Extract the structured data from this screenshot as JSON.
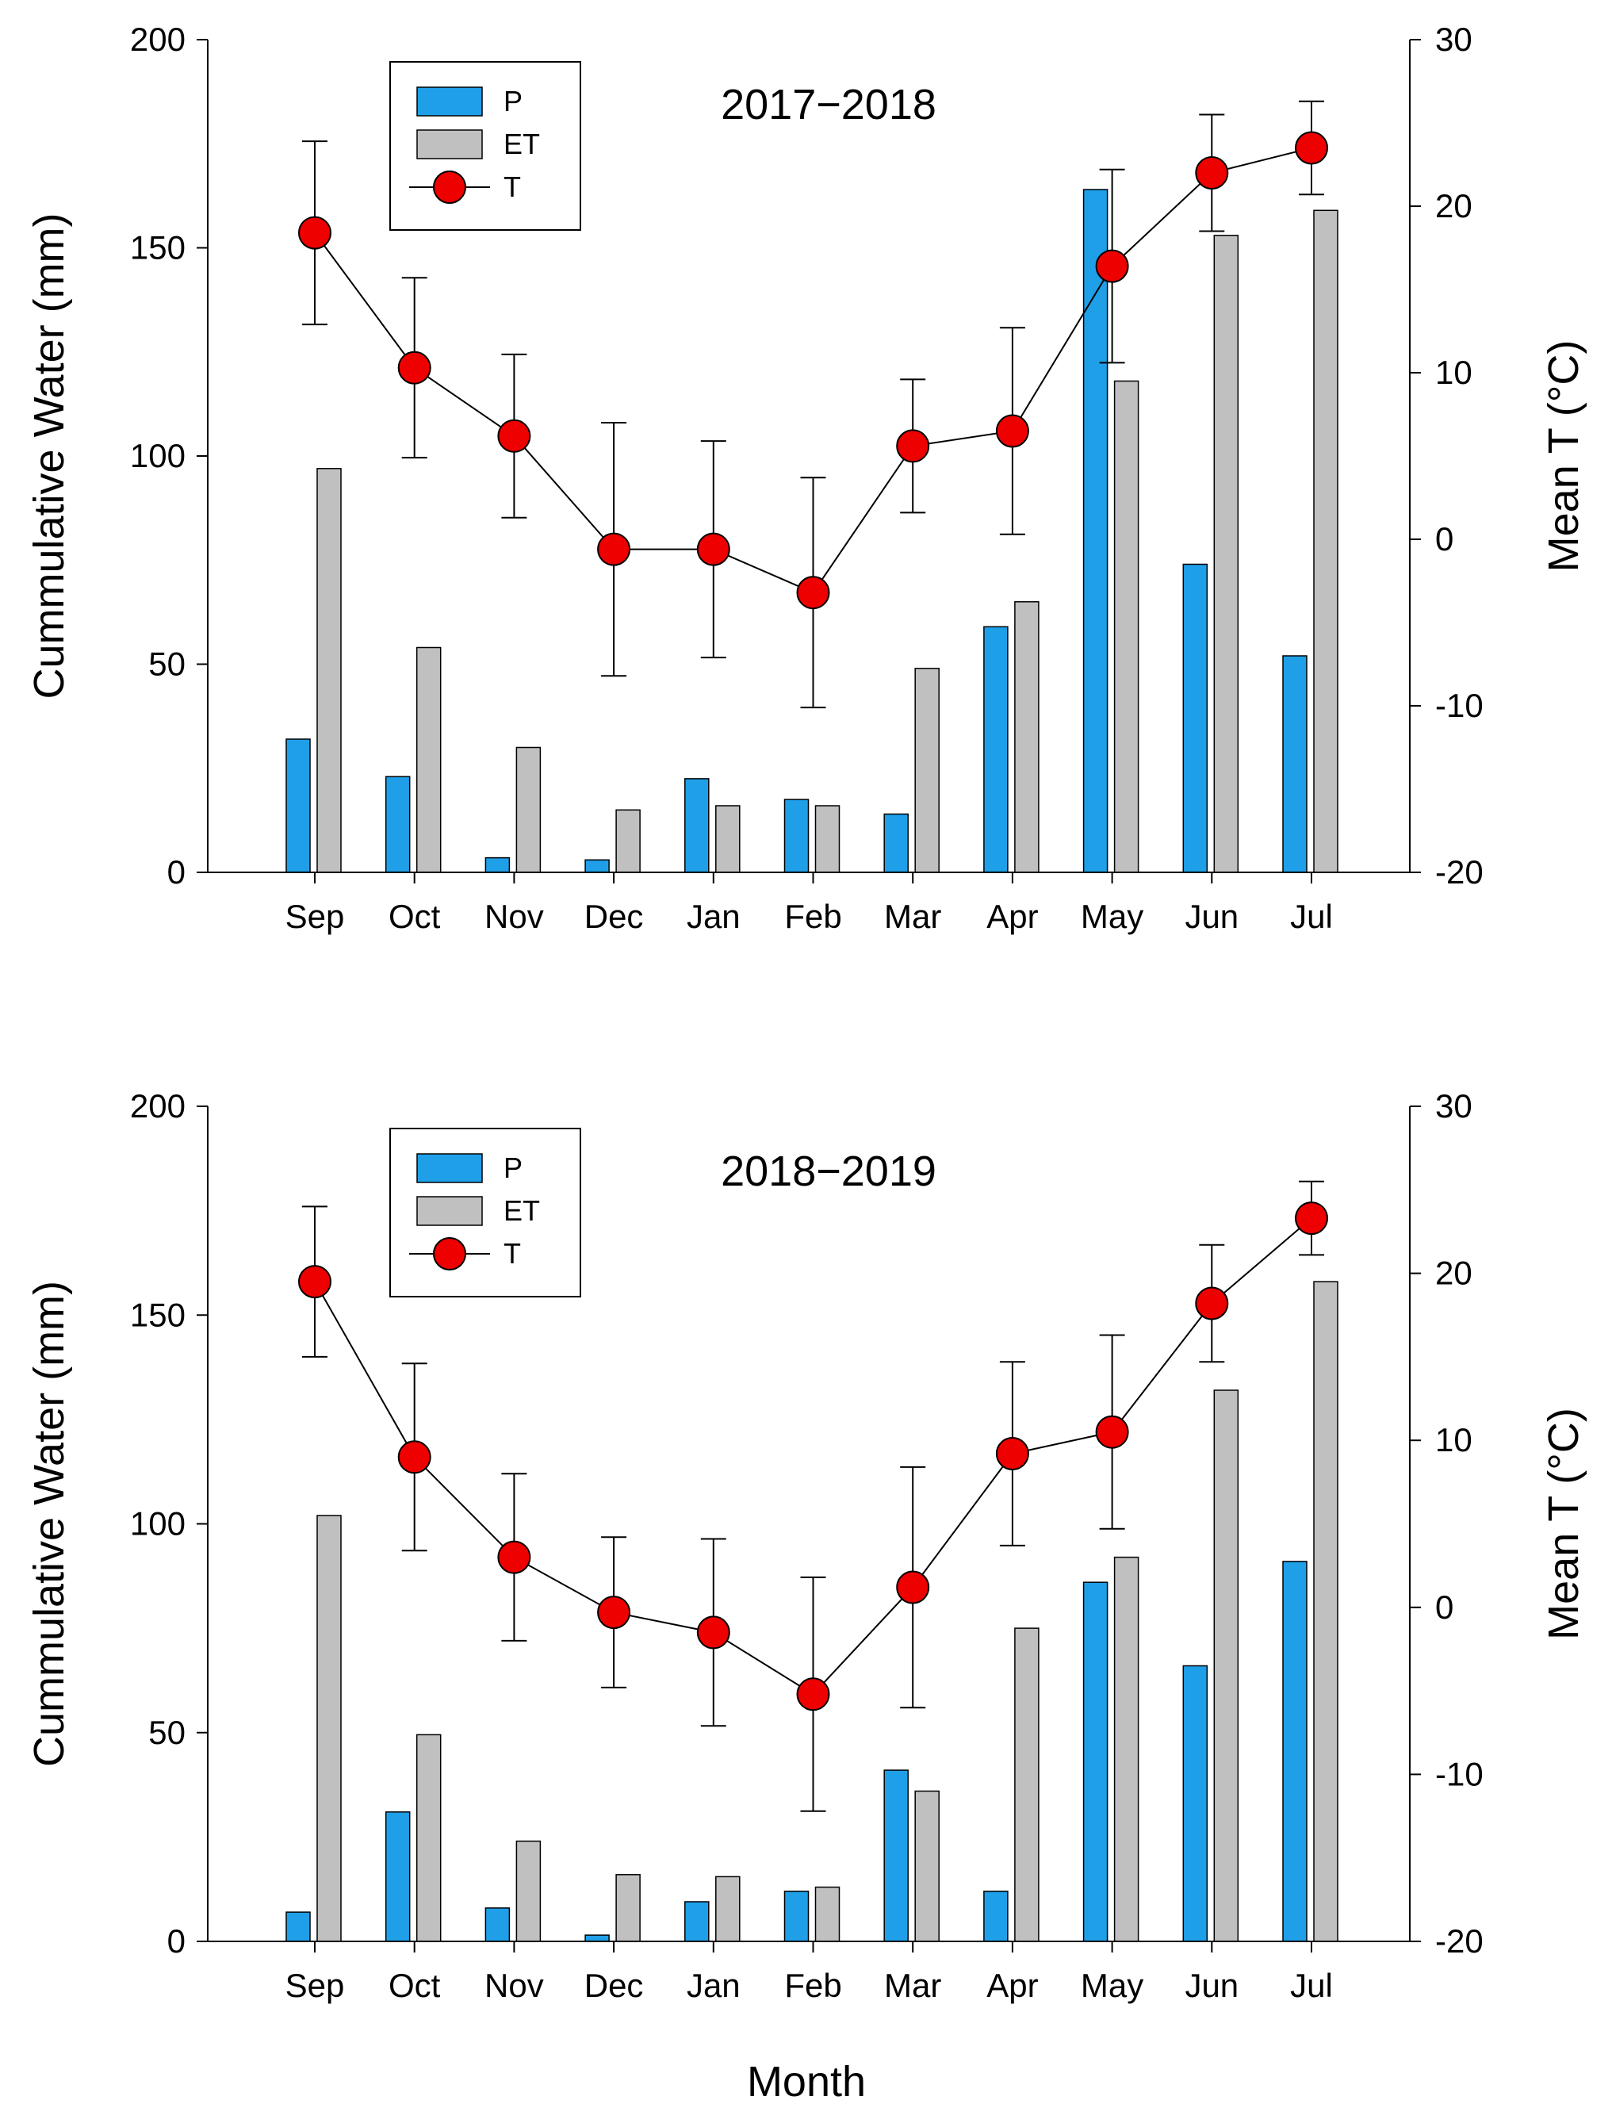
{
  "colors": {
    "p": "#1f9fe8",
    "et": "#c0c0c0",
    "t": "#ee0000",
    "line": "#000000"
  },
  "shared_xlabel": "Month",
  "chart_data": [
    {
      "type": "bar",
      "title": "2017−2018",
      "categories": [
        "Sep",
        "Oct",
        "Nov",
        "Dec",
        "Jan",
        "Feb",
        "Mar",
        "Apr",
        "May",
        "Jun",
        "Jul"
      ],
      "xlabel": "Month",
      "ylabel": "Cummulative Water (mm)",
      "ylim": [
        0,
        200
      ],
      "yticks": [
        0,
        50,
        100,
        150,
        200
      ],
      "y2label": "Mean T (°C)",
      "y2lim": [
        -20,
        30
      ],
      "y2ticks": [
        -20,
        -10,
        0,
        10,
        20,
        30
      ],
      "legend": [
        "P",
        "ET",
        "T"
      ],
      "legend_position": "top-left",
      "series": [
        {
          "name": "P",
          "kind": "bar",
          "axis": "left",
          "values": [
            32,
            23,
            3.5,
            3,
            22.5,
            17.5,
            14,
            59,
            164,
            74,
            52
          ]
        },
        {
          "name": "ET",
          "kind": "bar",
          "axis": "left",
          "values": [
            97,
            54,
            30,
            15,
            16,
            16,
            49,
            65,
            118,
            153,
            159
          ]
        },
        {
          "name": "T",
          "kind": "line",
          "axis": "right",
          "values": [
            18.4,
            10.3,
            6.2,
            -0.6,
            -0.6,
            -3.2,
            5.6,
            6.5,
            16.4,
            22.0,
            23.5
          ],
          "error": [
            5.5,
            5.4,
            4.9,
            7.6,
            6.5,
            6.9,
            4.0,
            6.2,
            5.8,
            3.5,
            2.8
          ]
        }
      ]
    },
    {
      "type": "bar",
      "title": "2018−2019",
      "categories": [
        "Sep",
        "Oct",
        "Nov",
        "Dec",
        "Jan",
        "Feb",
        "Mar",
        "Apr",
        "May",
        "Jun",
        "Jul"
      ],
      "xlabel": "Month",
      "ylabel": "Cummulative Water (mm)",
      "ylim": [
        0,
        200
      ],
      "yticks": [
        0,
        50,
        100,
        150,
        200
      ],
      "y2label": "Mean T (°C)",
      "y2lim": [
        -20,
        30
      ],
      "y2ticks": [
        -20,
        -10,
        0,
        10,
        20,
        30
      ],
      "legend": [
        "P",
        "ET",
        "T"
      ],
      "legend_position": "top-left",
      "series": [
        {
          "name": "P",
          "kind": "bar",
          "axis": "left",
          "values": [
            7,
            31,
            8,
            1.5,
            9.5,
            12,
            41,
            12,
            86,
            66,
            91
          ]
        },
        {
          "name": "ET",
          "kind": "bar",
          "axis": "left",
          "values": [
            102,
            49.5,
            24,
            16,
            15.5,
            13,
            36,
            75,
            92,
            132,
            158
          ]
        },
        {
          "name": "T",
          "kind": "line",
          "axis": "right",
          "values": [
            19.5,
            9.0,
            3.0,
            -0.3,
            -1.5,
            -5.2,
            1.2,
            9.2,
            10.5,
            18.2,
            23.3
          ],
          "error": [
            4.5,
            5.6,
            5.0,
            4.5,
            5.6,
            7.0,
            7.2,
            5.5,
            5.8,
            3.5,
            2.2
          ]
        }
      ]
    }
  ]
}
